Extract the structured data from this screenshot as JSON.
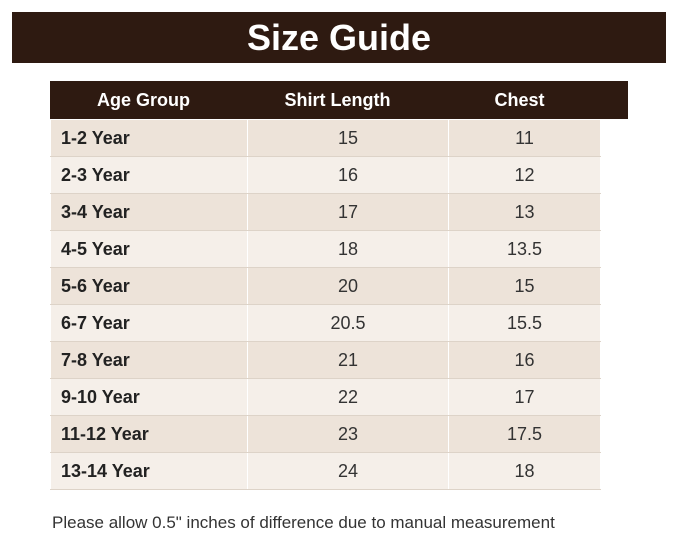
{
  "header": {
    "title": "Size Guide"
  },
  "table": {
    "columns": [
      "Age Group",
      "Shirt Length",
      "Chest"
    ],
    "rows": [
      [
        "1-2 Year",
        "15",
        "11"
      ],
      [
        "2-3 Year",
        "16",
        "12"
      ],
      [
        "3-4 Year",
        "17",
        "13"
      ],
      [
        "4-5 Year",
        "18",
        "13.5"
      ],
      [
        "5-6 Year",
        "20",
        "15"
      ],
      [
        "6-7 Year",
        "20.5",
        "15.5"
      ],
      [
        "7-8 Year",
        "21",
        "16"
      ],
      [
        "9-10 Year",
        "22",
        "17"
      ],
      [
        "11-12 Year",
        "23",
        "17.5"
      ],
      [
        "13-14 Year",
        "24",
        "18"
      ]
    ]
  },
  "footer": {
    "note": "Please allow 0.5\" inches of difference due to manual measurement"
  }
}
